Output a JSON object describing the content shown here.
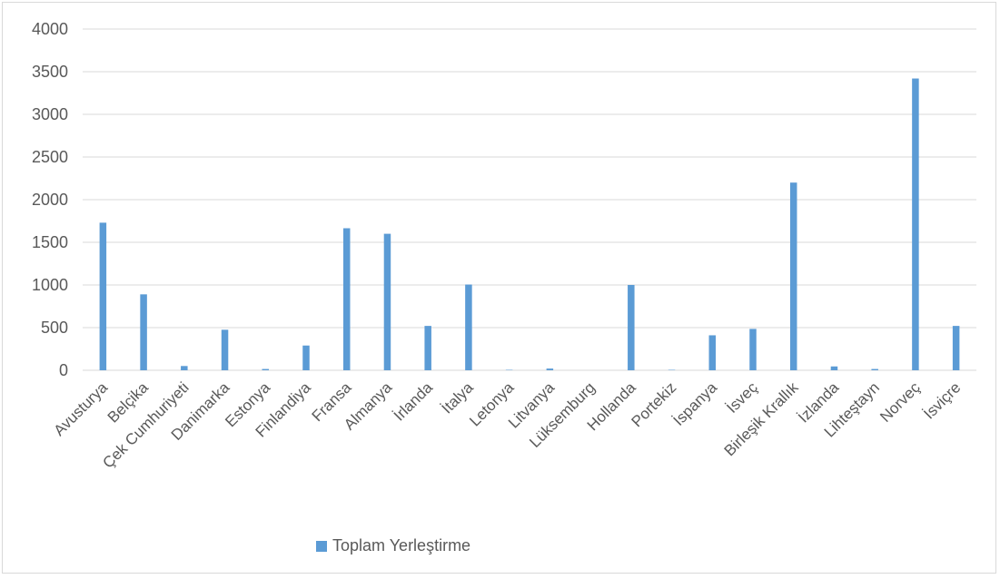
{
  "chart_data": {
    "type": "bar",
    "title": "",
    "xlabel": "",
    "ylabel": "",
    "ylim": [
      0,
      4000
    ],
    "yticks": [
      0,
      500,
      1000,
      1500,
      2000,
      2500,
      3000,
      3500,
      4000
    ],
    "grid": true,
    "legend_position": "bottom",
    "categories": [
      "Avusturya",
      "Belçika",
      "Çek Cumhuriyeti",
      "Danimarka",
      "Estonya",
      "Finlandiya",
      "Fransa",
      "Almanya",
      "İrlanda",
      "İtalya",
      "Letonya",
      "Litvanya",
      "Lüksemburg",
      "Hollanda",
      "Portekiz",
      "İspanya",
      "İsveç",
      "Birleşik Krallık",
      "İzlanda",
      "Lihteştayn",
      "Norveç",
      "İsviçre"
    ],
    "series": [
      {
        "name": "Toplam Yerleştirme",
        "color": "#5b9bd5",
        "values": [
          1730,
          890,
          50,
          475,
          15,
          290,
          1665,
          1600,
          520,
          1005,
          5,
          20,
          0,
          1000,
          5,
          410,
          485,
          2200,
          45,
          15,
          3420,
          520
        ]
      }
    ]
  },
  "legend": {
    "label": "Toplam Yerleştirme",
    "icon": "square-swatch"
  }
}
